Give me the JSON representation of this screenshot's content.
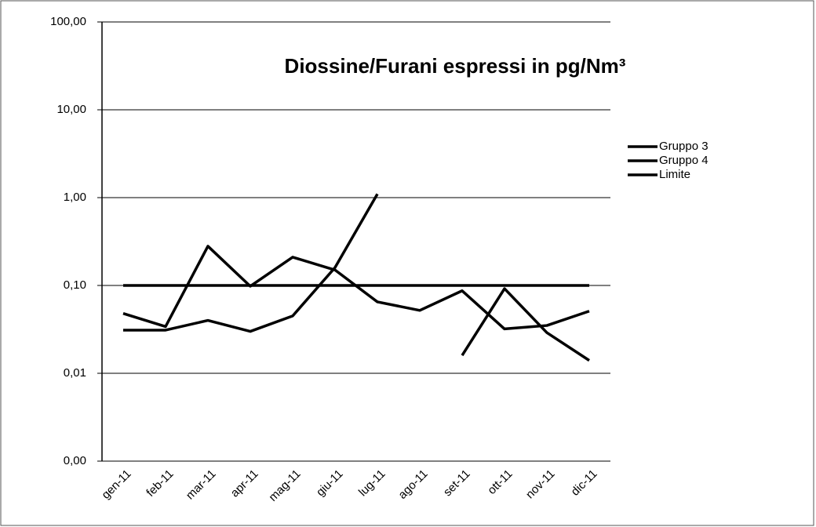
{
  "chart_data": {
    "type": "line",
    "title": "Diossine/Furani espressi in pg/Nm³",
    "categories": [
      "gen-11",
      "feb-11",
      "mar-11",
      "apr-11",
      "mag-11",
      "giu-11",
      "lug-11",
      "ago-11",
      "set-11",
      "ott-11",
      "nov-11",
      "dic-11"
    ],
    "series": [
      {
        "name": "Gruppo 3",
        "color": "#000000",
        "values": [
          0.048,
          0.034,
          0.28,
          0.098,
          0.21,
          0.15,
          0.065,
          0.052,
          0.087,
          0.032,
          0.035,
          0.051
        ]
      },
      {
        "name": "Gruppo 4",
        "color": "#000000",
        "values": [
          0.031,
          0.031,
          0.04,
          0.03,
          0.045,
          0.16,
          1.1,
          null,
          0.016,
          0.092,
          0.029,
          0.014
        ]
      },
      {
        "name": "Limite",
        "color": "#000000",
        "values": [
          0.1,
          0.1,
          0.1,
          0.1,
          0.1,
          0.1,
          0.1,
          0.1,
          0.1,
          0.1,
          0.1,
          0.1
        ]
      }
    ],
    "ylim": [
      0.001,
      100
    ],
    "log_y": true,
    "yticks": [
      {
        "value": 0.001,
        "label": "0,00"
      },
      {
        "value": 0.01,
        "label": "0,01"
      },
      {
        "value": 0.1,
        "label": "0,10"
      },
      {
        "value": 1,
        "label": "1,00"
      },
      {
        "value": 10,
        "label": "10,00"
      },
      {
        "value": 100,
        "label": "100,00"
      }
    ],
    "grid": true,
    "legend": "right"
  }
}
